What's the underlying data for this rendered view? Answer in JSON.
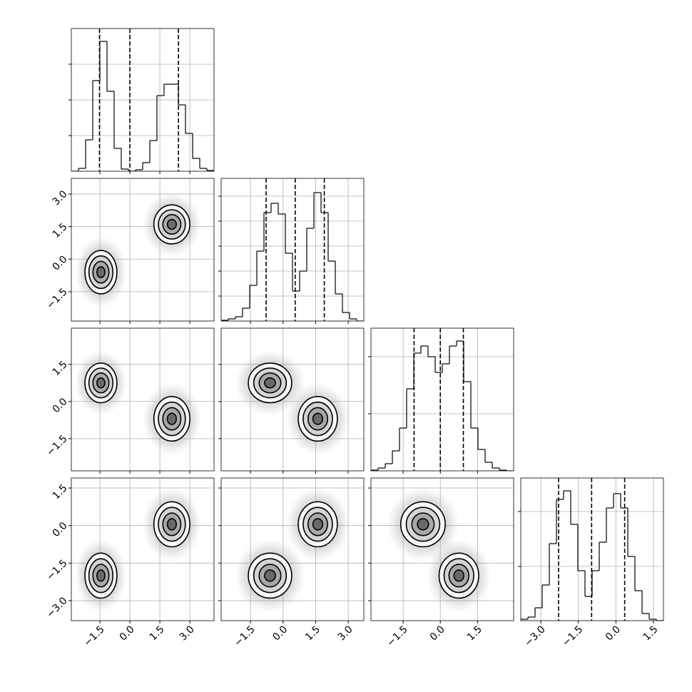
{
  "chart_data": {
    "type": "corner",
    "variables": [
      {
        "lim": [
          -2.93,
          4.21
        ],
        "ticks": [
          {
            "value": -1.5,
            "label": "−1.5"
          },
          {
            "value": 0,
            "label": "0.0"
          },
          1.5,
          {
            "value": 3,
            "label": "3.0"
          }
        ],
        "bins": [
          -2.93,
          -2.573,
          -2.216,
          -1.859,
          -1.502,
          -1.145,
          -0.788,
          -0.431,
          -0.074,
          0.283,
          0.64,
          0.997,
          1.354,
          1.711,
          2.068,
          2.425,
          2.782,
          3.139,
          3.496,
          3.853,
          4.21
        ],
        "counts": [
          0,
          4,
          44,
          127,
          182,
          112,
          32,
          3,
          0,
          2,
          12,
          43,
          106,
          122,
          122,
          93,
          53,
          18,
          4,
          1
        ],
        "hist_ylim": [
          0,
          200
        ],
        "hist_yticks": [
          50,
          100,
          150
        ],
        "quantiles": [
          -1.52,
          0.0,
          2.43
        ]
      },
      {
        "lim": [
          -2.85,
          3.72
        ],
        "ticks": [
          {
            "value": -1.5,
            "label": "−1.5"
          },
          {
            "value": 0,
            "label": "0.0"
          },
          1.5,
          {
            "value": 3,
            "label": "3.0"
          }
        ],
        "bins": [
          -2.85,
          -2.522,
          -2.193,
          -1.865,
          -1.536,
          -1.208,
          -0.879,
          -0.551,
          -0.222,
          0.107,
          0.435,
          0.764,
          1.092,
          1.421,
          1.749,
          2.078,
          2.406,
          2.735,
          3.063,
          3.392,
          3.72
        ],
        "counts": [
          1,
          3,
          6,
          18,
          50,
          98,
          152,
          165,
          150,
          95,
          42,
          70,
          130,
          180,
          152,
          84,
          38,
          12,
          3,
          0
        ],
        "hist_ylim": [
          0,
          200
        ],
        "hist_yticks": [
          35,
          70,
          105,
          140,
          175
        ],
        "quantiles": [
          -0.78,
          0.56,
          1.9
        ]
      },
      {
        "lim": [
          -2.8,
          2.96
        ],
        "ticks": [
          {
            "value": -1.5,
            "label": "−1.5"
          },
          {
            "value": 0,
            "label": "0.0"
          },
          1.5
        ],
        "bins": [
          -2.8,
          -2.512,
          -2.224,
          -1.936,
          -1.648,
          -1.36,
          -1.072,
          -0.784,
          -0.496,
          -0.208,
          0.08,
          0.368,
          0.656,
          0.944,
          1.232,
          1.52,
          1.808,
          2.096,
          2.384,
          2.672,
          2.96
        ],
        "counts": [
          1,
          4,
          10,
          28,
          60,
          115,
          165,
          175,
          160,
          138,
          150,
          175,
          182,
          125,
          60,
          30,
          12,
          4,
          1,
          0
        ],
        "hist_ylim": [
          0,
          200
        ],
        "hist_yticks": [
          80,
          160
        ],
        "quantiles": [
          -1.06,
          0.0,
          0.93
        ]
      },
      {
        "lim": [
          -3.8,
          1.9
        ],
        "ticks": [
          {
            "value": -3,
            "label": "−3.0"
          },
          {
            "value": -1.5,
            "label": "−1.5"
          },
          {
            "value": 0,
            "label": "0.0"
          },
          1.5
        ],
        "bins": [
          -3.8,
          -3.515,
          -3.23,
          -2.945,
          -2.66,
          -2.375,
          -2.09,
          -1.805,
          -1.52,
          -1.235,
          -0.95,
          -0.665,
          -0.38,
          -0.095,
          0.19,
          0.475,
          0.76,
          1.045,
          1.33,
          1.615,
          1.9
        ],
        "counts": [
          2,
          5,
          18,
          50,
          108,
          170,
          182,
          135,
          70,
          34,
          70,
          110,
          158,
          178,
          158,
          90,
          42,
          10,
          2,
          0
        ],
        "hist_ylim": [
          0,
          200
        ],
        "hist_yticks": [
          76,
          153
        ],
        "quantiles": [
          -2.29,
          -0.97,
          0.35
        ]
      }
    ],
    "modes": [
      {
        "means": [
          -1.45,
          -0.6,
          0.75,
          -2.0
        ],
        "sds": [
          0.4,
          0.5,
          0.4,
          0.45
        ]
      },
      {
        "means": [
          2.1,
          1.6,
          -0.7,
          0.05
        ],
        "sds": [
          0.45,
          0.45,
          0.45,
          0.45
        ]
      }
    ],
    "contour_levels": [
      2,
      1.5,
      1,
      0.5
    ],
    "contour_fills": [
      "#f6f6f6",
      "#d4d4d4",
      "#a8a8a8",
      "#6a6a6a"
    ],
    "grid": true
  }
}
